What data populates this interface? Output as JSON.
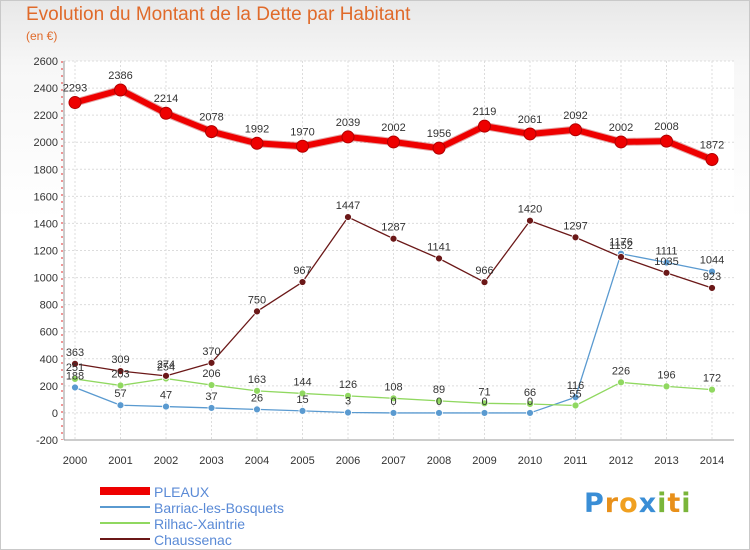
{
  "header": {
    "title": "Evolution du Montant de la Dette par Habitant",
    "subtitle": "(en €)"
  },
  "logo": {
    "text": "Proxiti"
  },
  "chart_data": {
    "type": "line",
    "title": "Evolution du Montant de la Dette par Habitant",
    "subtitle": "(en €)",
    "xlabel": "",
    "ylabel": "",
    "x": [
      "2000",
      "2001",
      "2002",
      "2003",
      "2004",
      "2005",
      "2006",
      "2007",
      "2008",
      "2009",
      "2010",
      "2011",
      "2012",
      "2013",
      "2014"
    ],
    "ylim": [
      -200,
      2600
    ],
    "yticks": [
      -200,
      0,
      200,
      400,
      600,
      800,
      1000,
      1200,
      1400,
      1600,
      1800,
      2000,
      2200,
      2400,
      2600
    ],
    "grid": true,
    "legend_position": "bottom-left",
    "series": [
      {
        "name": "PLEAUX",
        "color": "#ee0000",
        "values": [
          2293,
          2386,
          2214,
          2078,
          1992,
          1970,
          2039,
          2002,
          1956,
          2119,
          2061,
          2092,
          2002,
          2008,
          1872
        ]
      },
      {
        "name": "Barriac-les-Bosquets",
        "color": "#5a9ad0",
        "values": [
          188,
          57,
          47,
          37,
          26,
          15,
          3,
          0,
          0,
          0,
          0,
          116,
          1176,
          1111,
          1044
        ]
      },
      {
        "name": "Rilhac-Xaintrie",
        "color": "#90d860",
        "values": [
          251,
          203,
          254,
          206,
          163,
          144,
          126,
          108,
          89,
          71,
          66,
          55,
          226,
          196,
          172
        ]
      },
      {
        "name": "Chaussenac",
        "color": "#6b1818",
        "values": [
          363,
          309,
          274,
          370,
          750,
          967,
          1447,
          1287,
          1141,
          966,
          1420,
          1297,
          1152,
          1035,
          923
        ]
      }
    ]
  }
}
